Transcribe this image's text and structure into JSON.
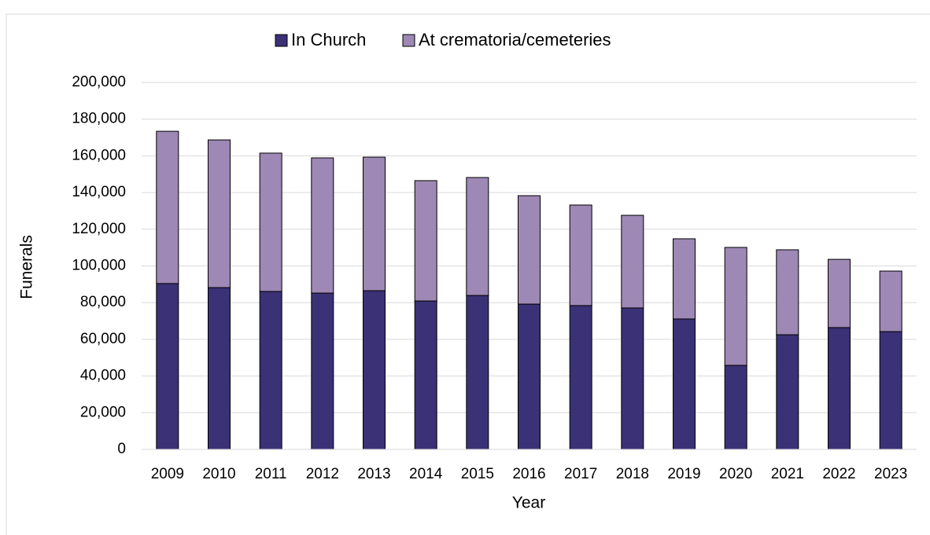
{
  "chart_data": {
    "type": "stacked_bar",
    "categories": [
      "2009",
      "2010",
      "2011",
      "2012",
      "2013",
      "2014",
      "2015",
      "2016",
      "2017",
      "2018",
      "2019",
      "2020",
      "2021",
      "2022",
      "2023"
    ],
    "series": [
      {
        "name": "In Church",
        "color": "#3b3176",
        "values": [
          90400,
          88200,
          86100,
          85200,
          86500,
          80900,
          83900,
          79200,
          78400,
          77100,
          71100,
          45800,
          62500,
          66400,
          64200
        ]
      },
      {
        "name": "At crematoria/cemeteries",
        "color": "#9e88b5",
        "values": [
          83000,
          80500,
          75400,
          73700,
          72800,
          65600,
          64300,
          59100,
          54800,
          50500,
          43700,
          64300,
          46300,
          37200,
          33000
        ]
      }
    ],
    "ylim": [
      0,
      200000
    ],
    "yticks": [
      0,
      {
        "value": 20000,
        "label": "20,000"
      },
      {
        "value": 40000,
        "label": "40,000"
      },
      {
        "value": 60000,
        "label": "60,000"
      },
      {
        "value": 80000,
        "label": "80,000"
      },
      {
        "value": 100000,
        "label": "100,000"
      },
      {
        "value": 120000,
        "label": "120,000"
      },
      {
        "value": 140000,
        "label": "140,000"
      },
      {
        "value": 160000,
        "label": "160,000"
      },
      {
        "value": 180000,
        "label": "180,000"
      },
      {
        "value": 200000,
        "label": "200,000"
      }
    ],
    "xlabel": "Year",
    "ylabel": "Funerals",
    "grid": true,
    "legend": "top"
  }
}
